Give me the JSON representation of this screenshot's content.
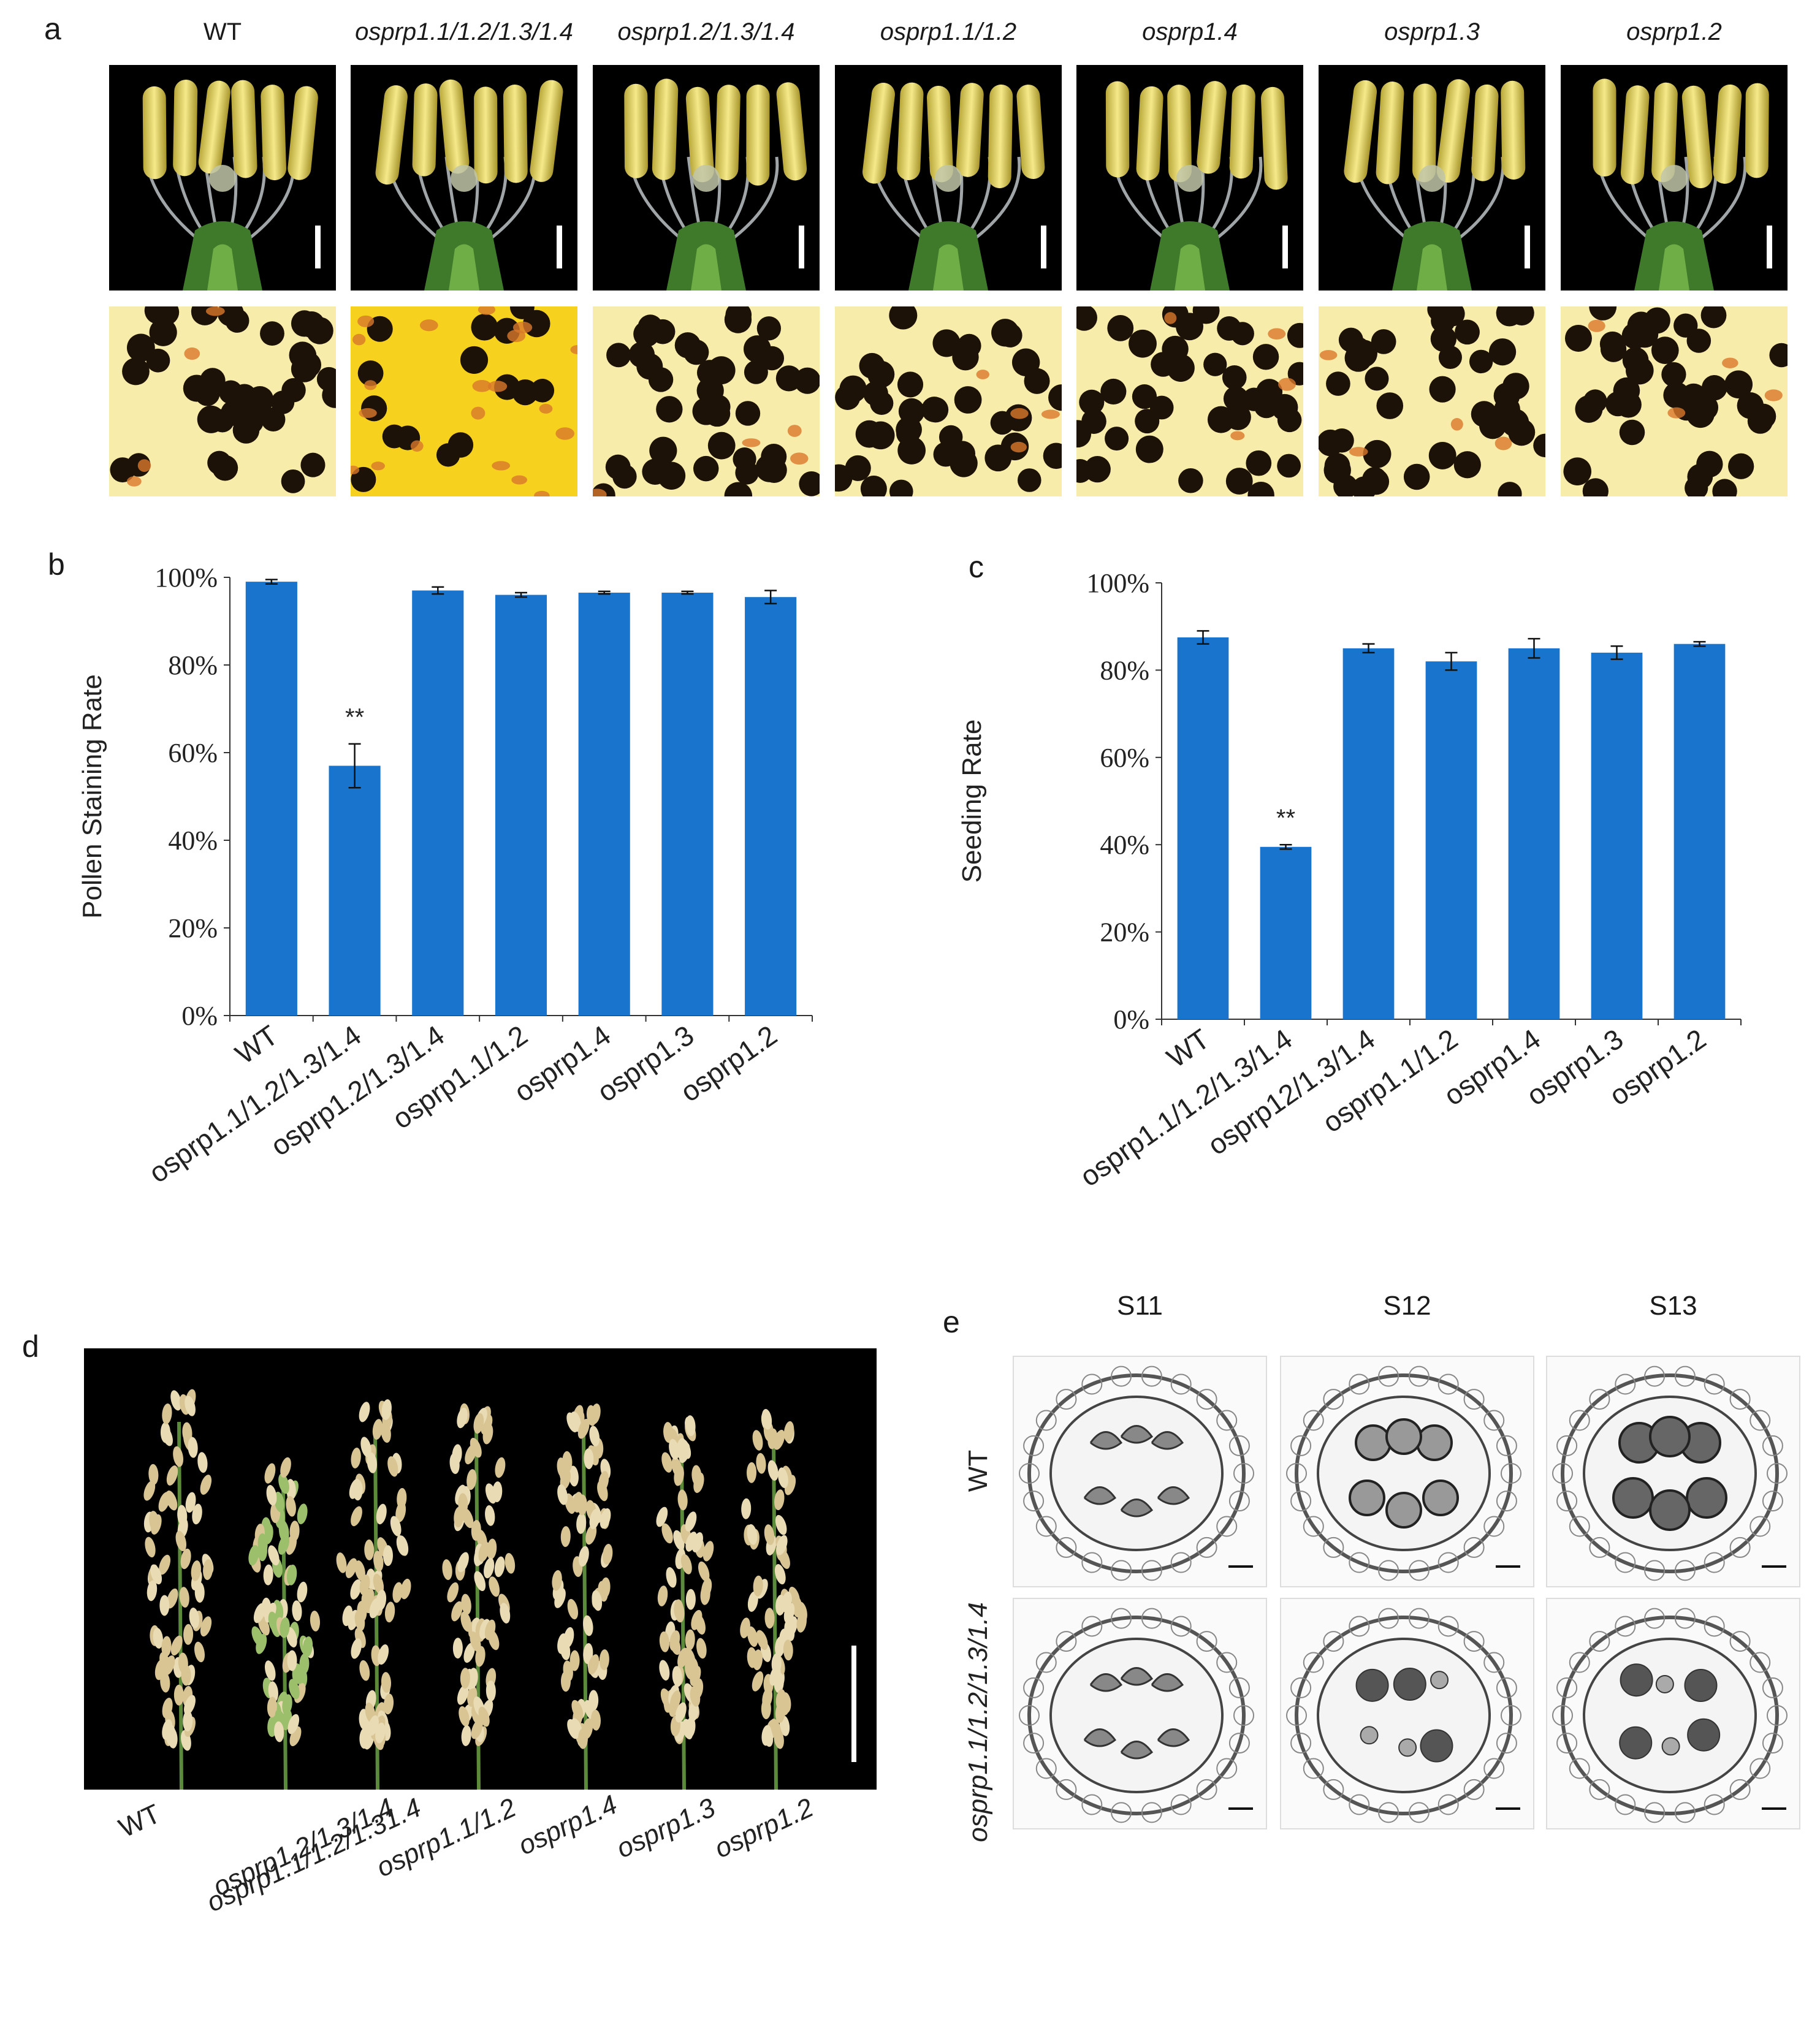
{
  "panels": {
    "a": {
      "letter": "a",
      "columns": [
        {
          "label": "WT",
          "italic": false
        },
        {
          "label": "osprp1.1/1.2/1.3/1.4",
          "italic": true
        },
        {
          "label": "osprp1.2/1.3/1.4",
          "italic": true
        },
        {
          "label": "osprp1.1/1.2",
          "italic": true
        },
        {
          "label": "osprp1.4",
          "italic": true
        },
        {
          "label": "osprp1.3",
          "italic": true
        },
        {
          "label": "osprp1.2",
          "italic": true
        }
      ]
    },
    "b": {
      "letter": "b"
    },
    "c": {
      "letter": "c"
    },
    "d": {
      "letter": "d",
      "labels": [
        "WT",
        "osprp1.1/1.2/1.31.4",
        "osprp1.2/1.3/1.4",
        "osprp1.1/1.2",
        "osprp1.4",
        "osprp1.3",
        "osprp1.2"
      ]
    },
    "e": {
      "letter": "e",
      "stages": [
        "S11",
        "S12",
        "S13"
      ],
      "rows": [
        "WT",
        "osprp1.1/1.2/1.3/1.4"
      ]
    }
  },
  "chart_data": [
    {
      "type": "bar",
      "panel": "b",
      "ylabel": "Pollen  Staining Rate",
      "ylim": [
        0,
        100
      ],
      "yticks": [
        "0%",
        "20%",
        "40%",
        "60%",
        "80%",
        "100%"
      ],
      "categories": [
        "WT",
        "osprp1.1/1.2/1.3/1.4",
        "osprp1.2/1.3/1.4",
        "osprp1.1/1.2",
        "osprp1.4",
        "osprp1.3",
        "osprp1.2"
      ],
      "values": [
        99,
        57,
        97,
        96,
        96.5,
        96.5,
        95.5
      ],
      "errors": [
        0.5,
        5,
        0.8,
        0.5,
        0.3,
        0.3,
        1.5
      ],
      "annotations": [
        {
          "index": 1,
          "text": "**"
        }
      ],
      "bar_color": "#1874CD"
    },
    {
      "type": "bar",
      "panel": "c",
      "ylabel": "Seeding  Rate",
      "ylim": [
        0,
        100
      ],
      "yticks": [
        "0%",
        "20%",
        "40%",
        "60%",
        "80%",
        "100%"
      ],
      "categories": [
        "WT",
        "osprp1.1/1.2/1.3/1.4",
        "osprp12/1.3/1.4",
        "osprp1.1/1.2",
        "osprp1.4",
        "osprp1.3",
        "osprp1.2"
      ],
      "values": [
        87.5,
        39.5,
        85,
        82,
        85,
        84,
        86
      ],
      "errors": [
        1.5,
        0.5,
        1,
        2,
        2.2,
        1.5,
        0.5
      ],
      "annotations": [
        {
          "index": 1,
          "text": "**"
        }
      ],
      "bar_color": "#1874CD"
    }
  ]
}
